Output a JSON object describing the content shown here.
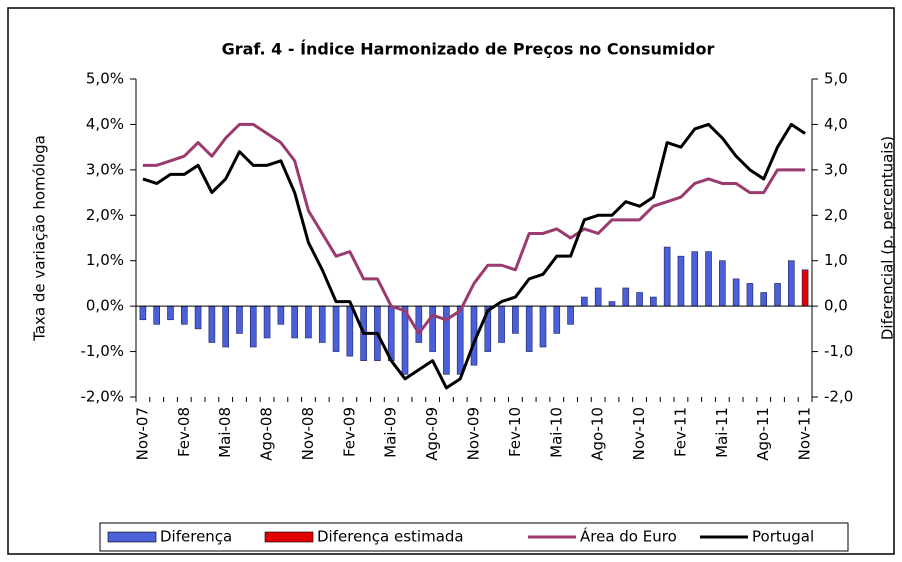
{
  "chart_data": {
    "type": "combo",
    "title": "Graf. 4 - Índice Harmonizado de Preços no Consumidor",
    "y_label": "Taxa de variação homóloga",
    "y2_label": "Diferencial (p. percentuais)",
    "categories": [
      "Nov-07",
      null,
      null,
      "Fev-08",
      null,
      null,
      "Mai-08",
      null,
      null,
      "Ago-08",
      null,
      null,
      "Nov-08",
      null,
      null,
      "Fev-09",
      null,
      null,
      "Mai-09",
      null,
      null,
      "Ago-09",
      null,
      null,
      "Nov-09",
      null,
      null,
      "Fev-10",
      null,
      null,
      "Mai-10",
      null,
      null,
      "Ago-10",
      null,
      null,
      "Nov-10",
      null,
      null,
      "Fev-11",
      null,
      null,
      "Mai-11",
      null,
      null,
      "Ago-11",
      null,
      null,
      "Nov-11"
    ],
    "ylim": [
      -2,
      5
    ],
    "yticks": [
      {
        "value": -2,
        "label": "-2,0%"
      },
      {
        "value": -1,
        "label": "-1,0%"
      },
      {
        "value": 0,
        "label": "0,0%"
      },
      {
        "value": 1,
        "label": "1,0%"
      },
      {
        "value": 2,
        "label": "2,0%"
      },
      {
        "value": 3,
        "label": "3,0%"
      },
      {
        "value": 4,
        "label": "4,0%"
      },
      {
        "value": 5,
        "label": "5,0%"
      }
    ],
    "y2lim": [
      -2,
      5
    ],
    "y2ticks": [
      {
        "value": -2,
        "label": "-2,0"
      },
      {
        "value": -1,
        "label": "-1,0"
      },
      {
        "value": 0,
        "label": "0,0"
      },
      {
        "value": 1,
        "label": "1,0"
      },
      {
        "value": 2,
        "label": "2,0"
      },
      {
        "value": 3,
        "label": "3,0"
      },
      {
        "value": 4,
        "label": "4,0"
      },
      {
        "value": 5,
        "label": "5,0"
      }
    ],
    "series": [
      {
        "name": "Diferença",
        "type": "bar",
        "axis": "y2",
        "color": "#4a5fd8",
        "values": [
          -0.3,
          -0.4,
          -0.3,
          -0.4,
          -0.5,
          -0.8,
          -0.9,
          -0.6,
          -0.9,
          -0.7,
          -0.4,
          -0.7,
          -0.7,
          -0.8,
          -1.0,
          -1.1,
          -1.2,
          -1.2,
          -1.2,
          -1.5,
          -0.8,
          -1.0,
          -1.5,
          -1.5,
          -1.3,
          -1.0,
          -0.8,
          -0.6,
          -1.0,
          -0.9,
          -0.6,
          -0.4,
          0.2,
          0.4,
          0.1,
          0.4,
          0.3,
          0.2,
          1.3,
          1.1,
          1.2,
          1.2,
          1.0,
          0.6,
          0.5,
          0.3,
          0.5,
          1.0,
          null
        ]
      },
      {
        "name": "Diferença estimada",
        "type": "bar",
        "axis": "y2",
        "color": "#e00000",
        "values": [
          null,
          null,
          null,
          null,
          null,
          null,
          null,
          null,
          null,
          null,
          null,
          null,
          null,
          null,
          null,
          null,
          null,
          null,
          null,
          null,
          null,
          null,
          null,
          null,
          null,
          null,
          null,
          null,
          null,
          null,
          null,
          null,
          null,
          null,
          null,
          null,
          null,
          null,
          null,
          null,
          null,
          null,
          null,
          null,
          null,
          null,
          null,
          null,
          0.8
        ]
      },
      {
        "name": "Área do Euro",
        "type": "line",
        "color": "#9b3a6e",
        "values": [
          3.1,
          3.1,
          3.2,
          3.3,
          3.6,
          3.3,
          3.7,
          4.0,
          4.0,
          3.8,
          3.6,
          3.2,
          2.1,
          1.6,
          1.1,
          1.2,
          0.6,
          0.6,
          0.0,
          -0.1,
          -0.6,
          -0.2,
          -0.3,
          -0.1,
          0.5,
          0.9,
          0.9,
          0.8,
          1.6,
          1.6,
          1.7,
          1.5,
          1.7,
          1.6,
          1.9,
          1.9,
          1.9,
          2.2,
          2.3,
          2.4,
          2.7,
          2.8,
          2.7,
          2.7,
          2.5,
          2.5,
          3.0,
          3.0,
          3.0
        ]
      },
      {
        "name": "Portugal",
        "type": "line",
        "color": "#000000",
        "values": [
          2.8,
          2.7,
          2.9,
          2.9,
          3.1,
          2.5,
          2.8,
          3.4,
          3.1,
          3.1,
          3.2,
          2.5,
          1.4,
          0.8,
          0.1,
          0.1,
          -0.6,
          -0.6,
          -1.2,
          -1.6,
          -1.4,
          -1.2,
          -1.8,
          -1.6,
          -0.8,
          -0.1,
          0.1,
          0.2,
          0.6,
          0.7,
          1.1,
          1.1,
          1.9,
          2.0,
          2.0,
          2.3,
          2.2,
          2.4,
          3.6,
          3.5,
          3.9,
          4.0,
          3.7,
          3.3,
          3.0,
          2.8,
          3.5,
          4.0,
          3.8
        ]
      }
    ]
  }
}
